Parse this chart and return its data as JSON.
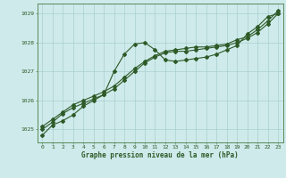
{
  "xlabel": "Graphe pression niveau de la mer (hPa)",
  "background_color": "#ceeaea",
  "grid_color": "#aacfcf",
  "line_color": "#2d5a27",
  "spine_color": "#5a8a5a",
  "xlim": [
    -0.5,
    23.5
  ],
  "ylim": [
    1024.55,
    1029.35
  ],
  "yticks": [
    1025,
    1026,
    1027,
    1028,
    1029
  ],
  "xticks": [
    0,
    1,
    2,
    3,
    4,
    5,
    6,
    7,
    8,
    9,
    10,
    11,
    12,
    13,
    14,
    15,
    16,
    17,
    18,
    19,
    20,
    21,
    22,
    23
  ],
  "series1": [
    1024.8,
    1025.15,
    1025.3,
    1025.5,
    1025.8,
    1026.0,
    1026.2,
    1027.0,
    1027.6,
    1027.95,
    1028.0,
    1027.75,
    1027.4,
    1027.35,
    1027.4,
    1027.45,
    1027.5,
    1027.6,
    1027.75,
    1027.9,
    1028.3,
    1028.55,
    1028.9,
    1029.0
  ],
  "series2": [
    1025.0,
    1025.25,
    1025.55,
    1025.75,
    1025.9,
    1026.05,
    1026.2,
    1026.4,
    1026.7,
    1027.0,
    1027.3,
    1027.5,
    1027.65,
    1027.7,
    1027.7,
    1027.75,
    1027.8,
    1027.85,
    1027.9,
    1028.0,
    1028.15,
    1028.35,
    1028.65,
    1029.0
  ],
  "series3": [
    1025.1,
    1025.35,
    1025.6,
    1025.85,
    1026.0,
    1026.15,
    1026.3,
    1026.5,
    1026.8,
    1027.1,
    1027.35,
    1027.55,
    1027.7,
    1027.75,
    1027.8,
    1027.85,
    1027.85,
    1027.9,
    1027.95,
    1028.1,
    1028.2,
    1028.45,
    1028.75,
    1029.1
  ],
  "tick_fontsize": 4.5,
  "xlabel_fontsize": 5.5,
  "marker_size": 2.0,
  "line_width": 0.8
}
